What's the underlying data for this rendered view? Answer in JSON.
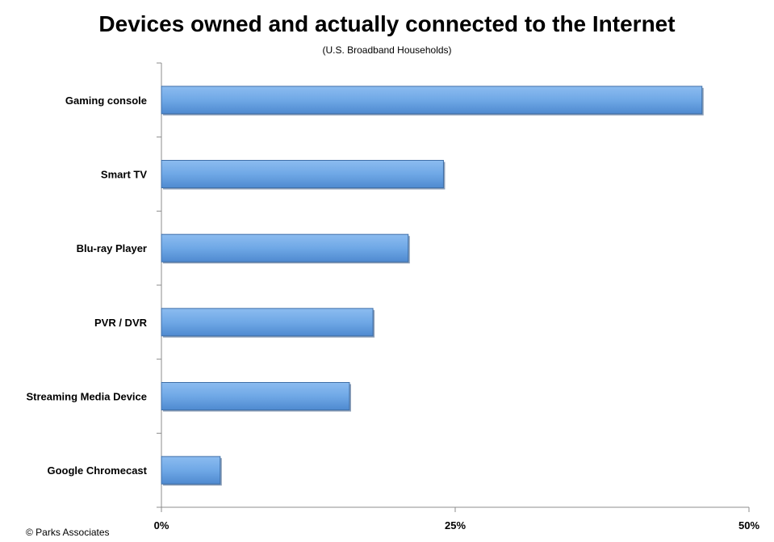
{
  "chart_data": {
    "type": "bar",
    "orientation": "horizontal",
    "title": "Devices owned and actually connected to the Internet",
    "subtitle": "(U.S. Broadband Households)",
    "categories": [
      "Gaming console",
      "Smart TV",
      "Blu-ray Player",
      "PVR / DVR",
      "Streaming Media Device",
      "Google Chromecast"
    ],
    "values": [
      46,
      24,
      21,
      18,
      16,
      5
    ],
    "xlim": [
      0,
      50
    ],
    "xticks": [
      0,
      25,
      50
    ],
    "xtick_labels": [
      "0%",
      "25%",
      "50%"
    ],
    "grid": false,
    "legend": "none",
    "bar_color": "#6fa8e6"
  },
  "credit": "© Parks Associates"
}
